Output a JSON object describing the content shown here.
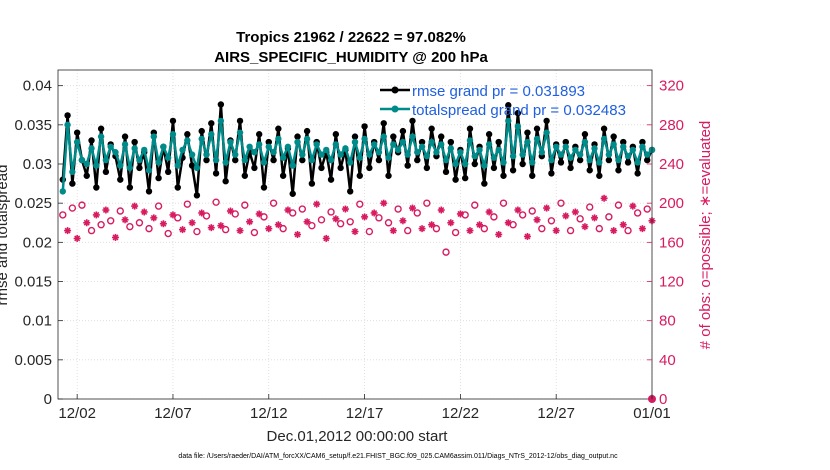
{
  "chart_data": {
    "type": "line",
    "title": "Tropics 21962 / 22622 = 97.082%",
    "subtitle": "AIRS_SPECIFIC_HUMIDITY @ 200 hPa",
    "xlabel": "Dec.01,2012 00:00:00 start",
    "ylabel": "rmse and totalspread",
    "ylabel_right": "# of obs: o=possible; ∗=evaluated",
    "footer": "data file: /Users/raeder/DAI/ATM_forcXX/CAM6_setup/f.e21.FHIST_BGC.f09_025.CAM6assim.011/Diags_NTrS_2012-12/obs_diag_output.nc",
    "xlim": [
      0.5,
      31.5
    ],
    "ylim": [
      0,
      0.042
    ],
    "ylim_right": [
      0,
      336
    ],
    "x_ticks": [
      1.5,
      6.5,
      11.5,
      16.5,
      21.5,
      26.5,
      31.5
    ],
    "x_tick_labels": [
      "12/02",
      "12/07",
      "12/12",
      "12/17",
      "12/22",
      "12/27",
      "01/01"
    ],
    "y_ticks": [
      0,
      0.005,
      0.01,
      0.015,
      0.02,
      0.025,
      0.03,
      0.035,
      0.04
    ],
    "y_tick_labels": [
      "0",
      "0.005",
      "0.01",
      "0.015",
      "0.02",
      "0.025",
      "0.03",
      "0.035",
      "0.04"
    ],
    "y_right_ticks": [
      0,
      40,
      80,
      120,
      160,
      200,
      240,
      280,
      320
    ],
    "y_right_tick_labels": [
      "0",
      "40",
      "80",
      "120",
      "160",
      "200",
      "240",
      "280",
      "320"
    ],
    "grid": true,
    "legend_position": "top-right",
    "legend": [
      "rmse grand pr = 0.031893",
      "totalspread grand pr = 0.032483"
    ],
    "colors": {
      "rmse": "#000000",
      "spread": "#008b8b",
      "obs": "#d81b60",
      "legend_text": "#1f5fe0"
    },
    "x_start": 0.75,
    "x_step": 0.25,
    "series": [
      {
        "name": "rmse",
        "axis": "left",
        "values": [
          0.028,
          0.0362,
          0.0275,
          0.034,
          0.0305,
          0.0285,
          0.033,
          0.027,
          0.0345,
          0.029,
          0.0325,
          0.031,
          0.028,
          0.0335,
          0.027,
          0.0328,
          0.0295,
          0.0315,
          0.0265,
          0.034,
          0.0282,
          0.0322,
          0.029,
          0.0355,
          0.027,
          0.0308,
          0.0338,
          0.0298,
          0.026,
          0.0342,
          0.0305,
          0.0352,
          0.0288,
          0.0376,
          0.0278,
          0.033,
          0.0305,
          0.0355,
          0.0285,
          0.0315,
          0.0295,
          0.0338,
          0.027,
          0.0328,
          0.0305,
          0.0345,
          0.0285,
          0.032,
          0.0262,
          0.0335,
          0.0305,
          0.0342,
          0.0275,
          0.0328,
          0.0295,
          0.0315,
          0.028,
          0.0338,
          0.0295,
          0.0318,
          0.0265,
          0.0335,
          0.0285,
          0.0348,
          0.0295,
          0.0328,
          0.0305,
          0.0352,
          0.0285,
          0.0335,
          0.0315,
          0.0342,
          0.0298,
          0.0355,
          0.0305,
          0.0328,
          0.0295,
          0.0345,
          0.031,
          0.0335,
          0.029,
          0.0328,
          0.028,
          0.0318,
          0.0282,
          0.0345,
          0.03,
          0.0322,
          0.0275,
          0.0338,
          0.0295,
          0.0328,
          0.0285,
          0.0375,
          0.0292,
          0.0365,
          0.03,
          0.034,
          0.0285,
          0.0345,
          0.031,
          0.0355,
          0.0288,
          0.0325,
          0.0302,
          0.0328,
          0.0295,
          0.0322,
          0.0305,
          0.0338,
          0.0292,
          0.0325,
          0.0285,
          0.0345,
          0.0305,
          0.0335,
          0.0292,
          0.0328,
          0.0302,
          0.0322,
          0.0288,
          0.0328,
          0.0305,
          0.0318
        ]
      },
      {
        "name": "totalspread",
        "axis": "left",
        "values": [
          0.0265,
          0.035,
          0.029,
          0.0328,
          0.0305,
          0.03,
          0.032,
          0.0298,
          0.0335,
          0.0305,
          0.0322,
          0.0315,
          0.0298,
          0.0325,
          0.0295,
          0.032,
          0.0305,
          0.0318,
          0.0292,
          0.0335,
          0.0302,
          0.0322,
          0.0308,
          0.0338,
          0.0298,
          0.0318,
          0.033,
          0.0312,
          0.0295,
          0.0332,
          0.0312,
          0.0338,
          0.0305,
          0.0355,
          0.0302,
          0.0328,
          0.0312,
          0.034,
          0.0305,
          0.0322,
          0.0315,
          0.0325,
          0.0302,
          0.0322,
          0.0315,
          0.0332,
          0.0308,
          0.0322,
          0.0298,
          0.0328,
          0.0312,
          0.0332,
          0.0305,
          0.0325,
          0.0312,
          0.0318,
          0.0305,
          0.0325,
          0.0312,
          0.032,
          0.0302,
          0.0328,
          0.0308,
          0.0332,
          0.0312,
          0.0325,
          0.0315,
          0.0335,
          0.0308,
          0.0325,
          0.0318,
          0.0328,
          0.0312,
          0.0335,
          0.0315,
          0.0322,
          0.031,
          0.0328,
          0.0315,
          0.0325,
          0.0305,
          0.032,
          0.03,
          0.0315,
          0.03,
          0.033,
          0.031,
          0.0318,
          0.0298,
          0.0325,
          0.0308,
          0.0318,
          0.0302,
          0.0355,
          0.031,
          0.0348,
          0.0312,
          0.0328,
          0.0302,
          0.0332,
          0.0315,
          0.034,
          0.0305,
          0.0322,
          0.0312,
          0.0322,
          0.0308,
          0.0318,
          0.0312,
          0.0328,
          0.0305,
          0.032,
          0.0302,
          0.0332,
          0.0312,
          0.0325,
          0.0305,
          0.0322,
          0.031,
          0.0318,
          0.0302,
          0.0322,
          0.0312,
          0.0318
        ]
      },
      {
        "name": "obs possible (o)",
        "axis": "right",
        "values": [
          188,
          175,
          195,
          168,
          198,
          184,
          172,
          190,
          178,
          196,
          182,
          170,
          192,
          186,
          176,
          200,
          180,
          194,
          174,
          188,
          197,
          182,
          169,
          191,
          185,
          177,
          199,
          183,
          171,
          193,
          187,
          179,
          201,
          181,
          173,
          195,
          189,
          176,
          198,
          184,
          170,
          192,
          186,
          178,
          200,
          182,
          174,
          196,
          190,
          172,
          194,
          185,
          177,
          202,
          183,
          169,
          191,
          187,
          179,
          197,
          181,
          175,
          199,
          189,
          171,
          193,
          185,
          203,
          180,
          176,
          194,
          186,
          172,
          198,
          190,
          178,
          200,
          182,
          174,
          196,
          150,
          184,
          170,
          192,
          188,
          176,
          198,
          182,
          174,
          194,
          186,
          172,
          200,
          184,
          178,
          196,
          188,
          170,
          192,
          186,
          174,
          198,
          182,
          176,
          200,
          190,
          172,
          194,
          184,
          180,
          196,
          188,
          174,
          208,
          186,
          176,
          198,
          182,
          172,
          200,
          190,
          178,
          194,
          186
        ]
      },
      {
        "name": "obs evaluated (*)",
        "axis": "right",
        "values": [
          185,
          172,
          193,
          164,
          195,
          180,
          168,
          188,
          175,
          193,
          178,
          165,
          190,
          183,
          172,
          197,
          176,
          191,
          170,
          185,
          194,
          179,
          164,
          188,
          182,
          173,
          196,
          180,
          166,
          190,
          184,
          175,
          198,
          177,
          168,
          192,
          186,
          172,
          195,
          181,
          166,
          189,
          183,
          174,
          197,
          178,
          170,
          193,
          187,
          168,
          191,
          181,
          172,
          199,
          179,
          164,
          188,
          184,
          175,
          194,
          177,
          171,
          196,
          186,
          166,
          190,
          181,
          200,
          176,
          172,
          191,
          182,
          168,
          195,
          187,
          174,
          197,
          178,
          170,
          193,
          132,
          180,
          166,
          189,
          185,
          172,
          195,
          178,
          170,
          191,
          183,
          168,
          197,
          180,
          174,
          193,
          185,
          166,
          189,
          183,
          170,
          195,
          178,
          172,
          197,
          187,
          168,
          191,
          180,
          176,
          193,
          185,
          170,
          205,
          183,
          172,
          195,
          178,
          168,
          197,
          187,
          174,
          191,
          182
        ]
      }
    ]
  }
}
